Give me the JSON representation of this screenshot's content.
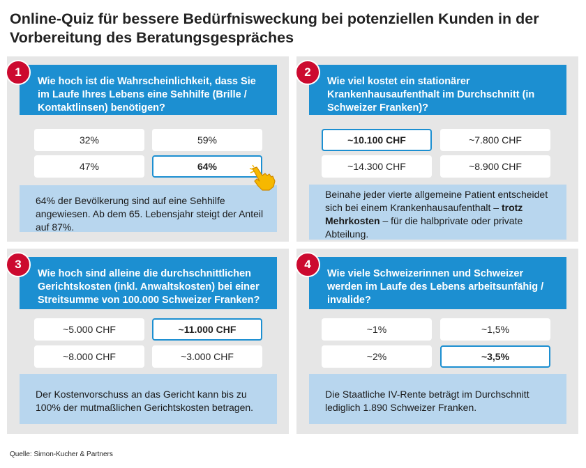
{
  "title": "Online-Quiz für bessere Bedürfnisweckung bei potenziellen Kunden in der Vorbereitung des Beratungsgespräches",
  "source": "Quelle: Simon-Kucher & Partners",
  "colors": {
    "accent_blue": "#1c8fd1",
    "badge_red": "#cc0a2f",
    "note_blue": "#b8d6ee",
    "card_gray": "#e6e6e6"
  },
  "quiz": [
    {
      "number": "1",
      "question": "Wie hoch ist die Wahrscheinlichkeit, dass Sie im Laufe Ihres Lebens eine Sehhilfe (Brille / Kontaktlinsen) benötigen?",
      "options": [
        "32%",
        "59%",
        "47%",
        "64%"
      ],
      "selected_index": 3,
      "note": "64% der Bevölkerung sind auf eine Sehhilfe angewiesen. Ab dem 65. Lebensjahr steigt der Anteil auf 87%."
    },
    {
      "number": "2",
      "question": "Wie viel kostet ein stationärer Krankenhausaufenthalt im Durchschnitt (in Schweizer Franken)?",
      "options": [
        "~10.100 CHF",
        "~7.800 CHF",
        "~14.300 CHF",
        "~8.900 CHF"
      ],
      "selected_index": 0,
      "note_part1": "Beinahe jeder vierte allgemeine Patient entscheidet sich bei einem Krankenhausaufenthalt – ",
      "note_bold": "trotz Mehrkosten",
      "note_part2": " – für die halbprivate oder private Abteilung."
    },
    {
      "number": "3",
      "question": "Wie hoch sind alleine die durchschnittlichen Gerichtskosten (inkl. Anwaltskosten) bei einer Streitsumme von 100.000 Schweizer Franken?",
      "options": [
        "~5.000 CHF",
        "~11.000 CHF",
        "~8.000 CHF",
        "~3.000 CHF"
      ],
      "selected_index": 1,
      "note": "Der Kostenvorschuss an das Gericht kann bis zu 100% der mutmaßlichen Gerichtskosten betragen."
    },
    {
      "number": "4",
      "question": "Wie viele Schweizerinnen und Schweizer werden im Laufe des Lebens arbeitsunfähig / invalide?",
      "options": [
        "~1%",
        "~1,5%",
        "~2%",
        "~3,5%"
      ],
      "selected_index": 3,
      "note": "Die Staatliche IV-Rente beträgt im Durchschnitt lediglich 1.890 Schweizer Franken."
    }
  ]
}
